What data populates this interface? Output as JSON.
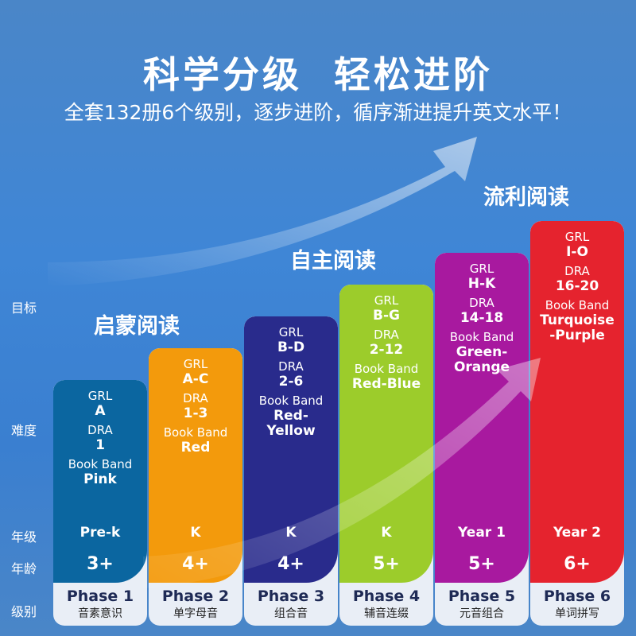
{
  "title": "科学分级  轻松进阶",
  "subtitle": "全套132册6个级别，逐步进阶，循序渐进提升英文水平！",
  "row_labels": {
    "target": "目标",
    "difficulty": "难度",
    "grade": "年级",
    "age": "年龄",
    "level": "级别"
  },
  "stages": [
    "启蒙阅读",
    "自主阅读",
    "流利阅读"
  ],
  "labels": {
    "grl": "GRL",
    "dra": "DRA",
    "band": "Book Band"
  },
  "phases": [
    {
      "grl": "A",
      "dra": "1",
      "band": [
        "Pink"
      ],
      "grade": "Pre-k",
      "age": "3+",
      "phase": "Phase 1",
      "desc": "音素意识",
      "color": "#0b66a0"
    },
    {
      "grl": "A-C",
      "dra": "1-3",
      "band": [
        "Red"
      ],
      "grade": "K",
      "age": "4+",
      "phase": "Phase 2",
      "desc": "单字母音",
      "color": "#f39a0c"
    },
    {
      "grl": "B-D",
      "dra": "2-6",
      "band": [
        "Red-",
        "Yellow"
      ],
      "grade": "K",
      "age": "4+",
      "phase": "Phase 3",
      "desc": "组合音",
      "color": "#292b8c"
    },
    {
      "grl": "B-G",
      "dra": "2-12",
      "band": [
        "Red-Blue"
      ],
      "grade": "K",
      "age": "5+",
      "phase": "Phase 4",
      "desc": "辅音连缀",
      "color": "#9ccc2b"
    },
    {
      "grl": "H-K",
      "dra": "14-18",
      "band": [
        "Green-",
        "Orange"
      ],
      "grade": "Year 1",
      "age": "5+",
      "phase": "Phase 5",
      "desc": "元音组合",
      "color": "#a8199f"
    },
    {
      "grl": "I-O",
      "dra": "16-20",
      "band": [
        "Turquoise",
        "-Purple"
      ],
      "grade": "Year 2",
      "age": "6+",
      "phase": "Phase 6",
      "desc": "单词拼写",
      "color": "#e5232e"
    }
  ]
}
